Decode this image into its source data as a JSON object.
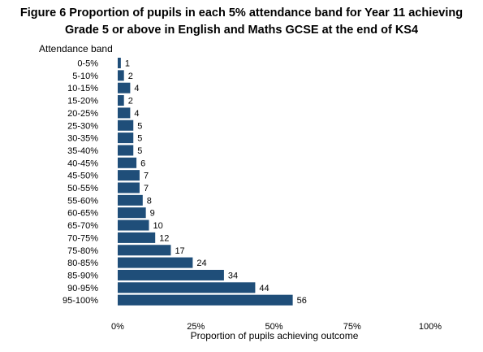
{
  "title_lines": [
    "Figure 6 Proportion of pupils in each 5% attendance band for Year 11 achieving",
    "Grade 5 or above in English and Maths GCSE at the end of KS4"
  ],
  "chart_data": {
    "type": "bar",
    "orientation": "horizontal",
    "title": "Figure 6 Proportion of pupils in each 5% attendance band for Year 11 achieving Grade 5 or above in English and Maths GCSE at the end of KS4",
    "ylabel": "Attendance band",
    "xlabel": "Proportion of pupils achieving outcome",
    "categories": [
      "0-5%",
      "5-10%",
      "10-15%",
      "15-20%",
      "20-25%",
      "25-30%",
      "30-35%",
      "35-40%",
      "40-45%",
      "45-50%",
      "50-55%",
      "55-60%",
      "60-65%",
      "65-70%",
      "70-75%",
      "75-80%",
      "80-85%",
      "85-90%",
      "90-95%",
      "95-100%"
    ],
    "values": [
      1,
      2,
      4,
      2,
      4,
      5,
      5,
      5,
      6,
      7,
      7,
      8,
      9,
      10,
      12,
      17,
      24,
      34,
      44,
      56
    ],
    "xlim": [
      0,
      100
    ],
    "xticks": [
      "0%",
      "25%",
      "50%",
      "75%",
      "100%"
    ],
    "bar_color": "#1f4e79",
    "grid": false,
    "legend": "none"
  }
}
